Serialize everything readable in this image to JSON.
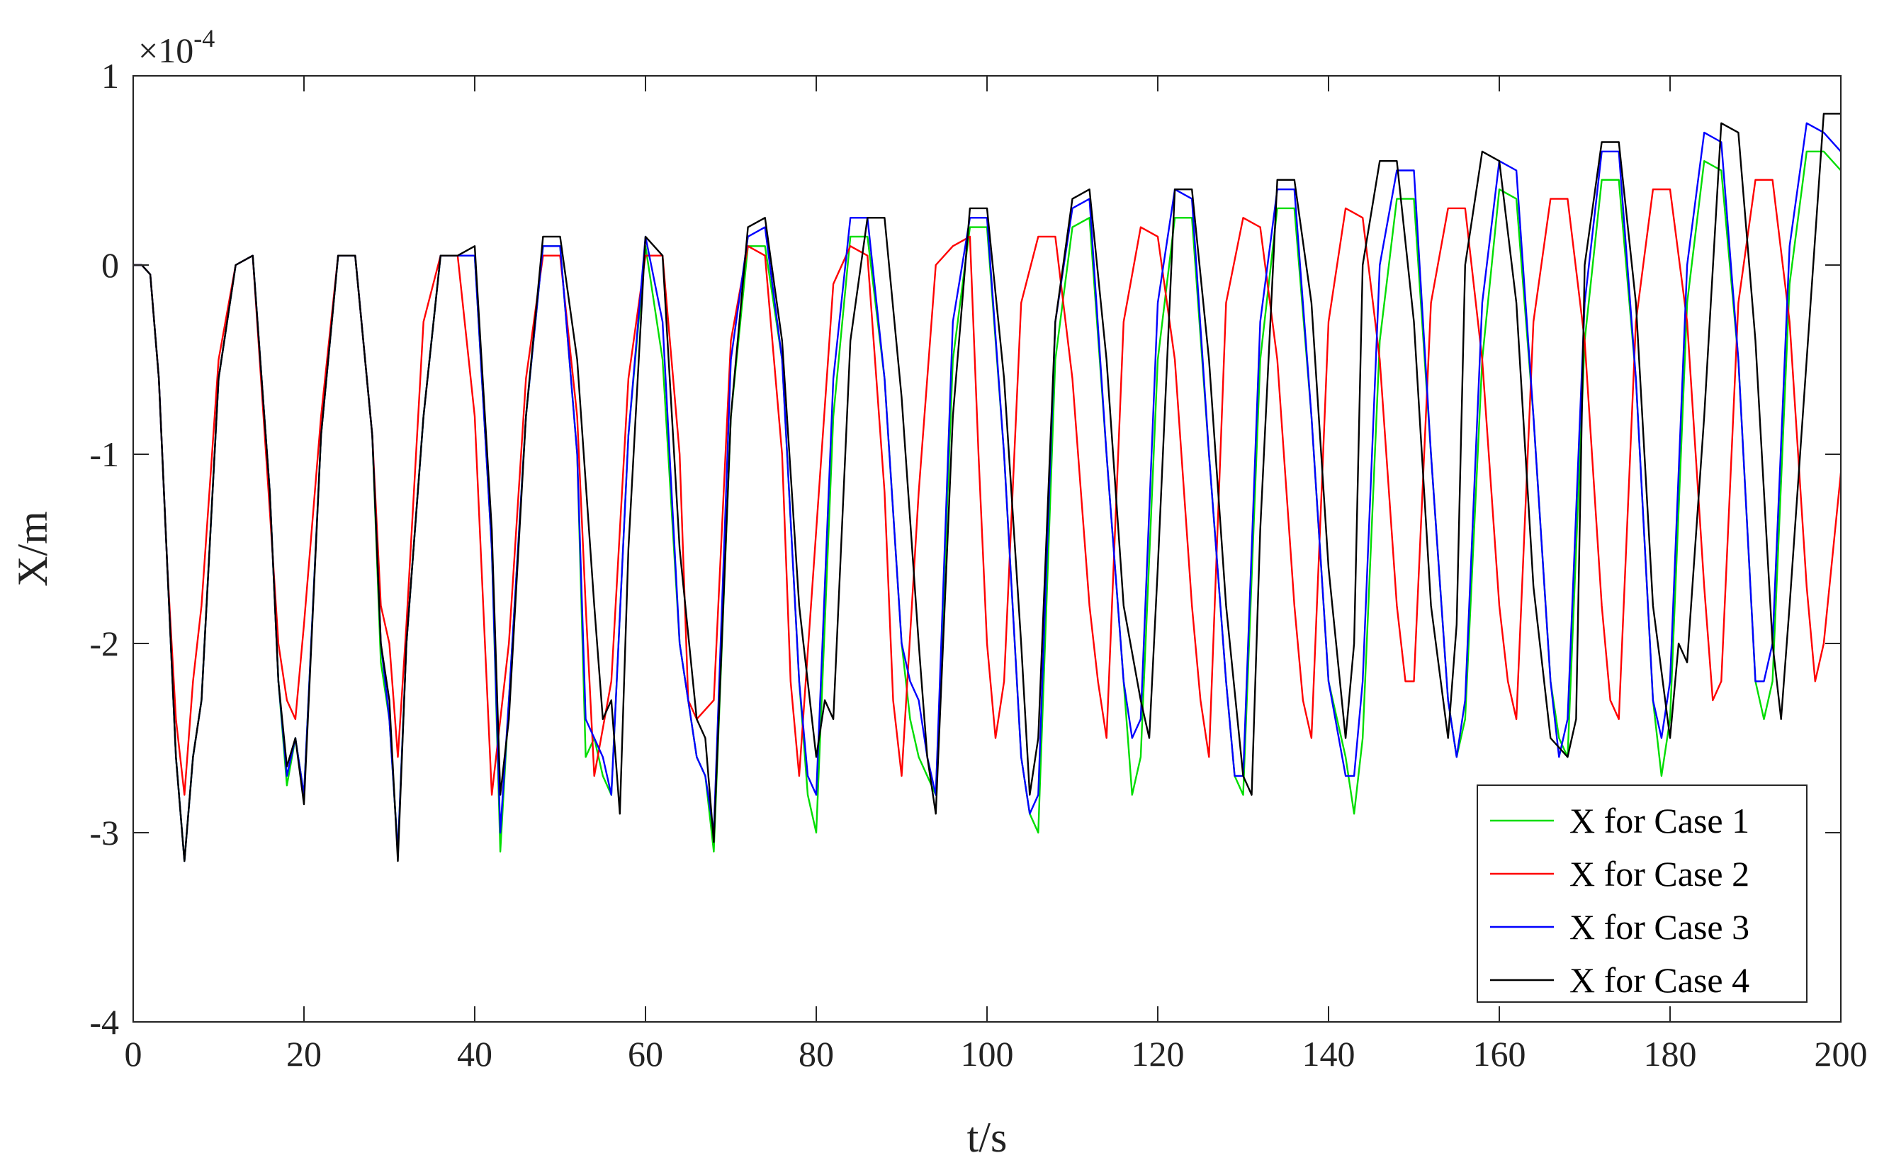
{
  "chart_data": {
    "type": "line",
    "title": "",
    "xlabel": "t/s",
    "ylabel": "X/m",
    "xlim": [
      0,
      200
    ],
    "ylim": [
      -4,
      1
    ],
    "x_ticks": [
      0,
      20,
      40,
      60,
      80,
      100,
      120,
      140,
      160,
      180,
      200
    ],
    "y_ticks": [
      -4,
      -3,
      -2,
      -1,
      0,
      1
    ],
    "y_exponent": {
      "base": "×10",
      "power": "-4"
    },
    "grid": false,
    "legend_position": "bottom-right",
    "series": [
      {
        "name": "X for Case 1",
        "color": "#00dd00",
        "x": [
          0,
          1,
          2,
          3,
          4,
          5,
          6,
          7,
          8,
          10,
          12,
          14,
          16,
          17,
          18,
          19,
          20,
          22,
          24,
          26,
          28,
          29,
          30,
          31,
          32,
          34,
          36,
          38,
          40,
          42,
          43,
          44,
          46,
          48,
          50,
          52,
          53,
          54,
          55,
          56,
          58,
          60,
          62,
          64,
          66,
          67,
          68,
          70,
          72,
          74,
          76,
          78,
          79,
          80,
          82,
          84,
          86,
          88,
          90,
          91,
          92,
          94,
          96,
          98,
          100,
          102,
          104,
          105,
          106,
          108,
          110,
          112,
          114,
          116,
          117,
          118,
          120,
          122,
          124,
          126,
          128,
          129,
          130,
          132,
          134,
          136,
          138,
          140,
          142,
          143,
          144,
          146,
          148,
          150,
          152,
          154,
          155,
          156,
          158,
          160,
          162,
          164,
          166,
          167,
          168,
          170,
          172,
          174,
          176,
          178,
          179,
          180,
          182,
          184,
          186,
          188,
          190,
          191,
          192,
          194,
          196,
          198,
          200
        ],
        "y": [
          0,
          0,
          -0.05,
          -0.6,
          -1.6,
          -2.6,
          -3.15,
          -2.6,
          -2.3,
          -0.6,
          0,
          0.05,
          -1.2,
          -2.2,
          -2.75,
          -2.5,
          -2.8,
          -0.9,
          0.05,
          0.05,
          -0.9,
          -2.1,
          -2.4,
          -3.1,
          -2.0,
          -0.8,
          0.05,
          0.05,
          0.05,
          -1.5,
          -3.1,
          -2.3,
          -0.8,
          0.1,
          0.1,
          -1.0,
          -2.6,
          -2.5,
          -2.7,
          -2.8,
          -0.9,
          0.1,
          -0.5,
          -2.0,
          -2.6,
          -2.7,
          -3.1,
          -0.8,
          0.1,
          0.1,
          -0.5,
          -2.2,
          -2.8,
          -3.0,
          -0.8,
          0.15,
          0.15,
          -0.6,
          -2.0,
          -2.4,
          -2.6,
          -2.8,
          -0.5,
          0.2,
          0.2,
          -1.0,
          -2.6,
          -2.9,
          -3.0,
          -0.5,
          0.2,
          0.25,
          -1.0,
          -2.2,
          -2.8,
          -2.6,
          -0.5,
          0.25,
          0.25,
          -1.0,
          -2.2,
          -2.7,
          -2.8,
          -0.5,
          0.3,
          0.3,
          -0.8,
          -2.2,
          -2.6,
          -2.9,
          -2.5,
          -0.4,
          0.35,
          0.35,
          -1.0,
          -2.3,
          -2.6,
          -2.4,
          -0.5,
          0.4,
          0.35,
          -0.8,
          -2.2,
          -2.5,
          -2.6,
          -0.4,
          0.45,
          0.45,
          -0.6,
          -2.3,
          -2.7,
          -2.4,
          -0.2,
          0.55,
          0.5,
          -0.5,
          -2.2,
          -2.4,
          -2.2,
          -0.1,
          0.6,
          0.6,
          0.5
        ]
      },
      {
        "name": "X for Case 2",
        "color": "#ff0000",
        "x": [
          0,
          1,
          2,
          3,
          4,
          5,
          6,
          7,
          8,
          10,
          12,
          14,
          16,
          17,
          18,
          19,
          20,
          22,
          24,
          26,
          28,
          29,
          30,
          31,
          32,
          34,
          36,
          38,
          40,
          41,
          42,
          44,
          46,
          48,
          50,
          52,
          53,
          54,
          56,
          58,
          60,
          62,
          64,
          65,
          66,
          68,
          70,
          72,
          74,
          76,
          77,
          78,
          80,
          82,
          84,
          86,
          88,
          89,
          90,
          92,
          94,
          96,
          98,
          99,
          100,
          101,
          102,
          104,
          106,
          108,
          110,
          112,
          113,
          114,
          116,
          118,
          120,
          122,
          124,
          125,
          126,
          128,
          130,
          132,
          134,
          136,
          137,
          138,
          140,
          142,
          144,
          146,
          148,
          149,
          150,
          152,
          154,
          156,
          158,
          160,
          161,
          162,
          164,
          166,
          168,
          170,
          172,
          173,
          174,
          176,
          178,
          180,
          182,
          184,
          185,
          186,
          188,
          190,
          192,
          194,
          196,
          197,
          198,
          200
        ],
        "y": [
          0,
          0,
          -0.05,
          -0.6,
          -1.6,
          -2.4,
          -2.8,
          -2.2,
          -1.8,
          -0.5,
          0,
          0.05,
          -1.3,
          -2.0,
          -2.3,
          -2.4,
          -1.9,
          -0.8,
          0.05,
          0.05,
          -0.9,
          -1.8,
          -2.0,
          -2.6,
          -1.9,
          -0.3,
          0.05,
          0.05,
          -0.8,
          -1.8,
          -2.8,
          -2.0,
          -0.6,
          0.05,
          0.05,
          -0.8,
          -1.8,
          -2.7,
          -2.2,
          -0.6,
          0.05,
          0.05,
          -1.0,
          -2.3,
          -2.4,
          -2.3,
          -0.4,
          0.1,
          0.05,
          -1.0,
          -2.2,
          -2.7,
          -1.4,
          -0.1,
          0.1,
          0.05,
          -1.2,
          -2.3,
          -2.7,
          -1.2,
          0.0,
          0.1,
          0.15,
          -1.0,
          -2.0,
          -2.5,
          -2.2,
          -0.2,
          0.15,
          0.15,
          -0.6,
          -1.8,
          -2.2,
          -2.5,
          -0.3,
          0.2,
          0.15,
          -0.5,
          -1.8,
          -2.3,
          -2.6,
          -0.2,
          0.25,
          0.2,
          -0.5,
          -1.8,
          -2.3,
          -2.5,
          -0.3,
          0.3,
          0.25,
          -0.5,
          -1.8,
          -2.2,
          -2.2,
          -0.2,
          0.3,
          0.3,
          -0.5,
          -1.8,
          -2.2,
          -2.4,
          -0.3,
          0.35,
          0.35,
          -0.4,
          -1.8,
          -2.3,
          -2.4,
          -0.3,
          0.4,
          0.4,
          -0.3,
          -1.7,
          -2.3,
          -2.2,
          -0.2,
          0.45,
          0.45,
          -0.3,
          -1.7,
          -2.2,
          -2.0,
          -1.1
        ]
      },
      {
        "name": "X for Case 3",
        "color": "#0000ff",
        "x": [
          0,
          1,
          2,
          3,
          4,
          5,
          6,
          7,
          8,
          10,
          12,
          14,
          16,
          17,
          18,
          19,
          20,
          22,
          24,
          26,
          28,
          29,
          30,
          31,
          32,
          34,
          36,
          38,
          40,
          42,
          43,
          44,
          46,
          48,
          50,
          52,
          53,
          54,
          55,
          56,
          58,
          60,
          62,
          64,
          66,
          67,
          68,
          70,
          72,
          74,
          76,
          78,
          79,
          80,
          82,
          84,
          86,
          88,
          90,
          91,
          92,
          93,
          94,
          96,
          98,
          100,
          102,
          104,
          105,
          106,
          108,
          110,
          112,
          114,
          116,
          117,
          118,
          120,
          122,
          124,
          126,
          128,
          129,
          130,
          132,
          134,
          136,
          138,
          140,
          142,
          143,
          144,
          146,
          148,
          150,
          152,
          154,
          155,
          156,
          158,
          160,
          162,
          164,
          166,
          167,
          168,
          170,
          172,
          174,
          176,
          178,
          179,
          180,
          182,
          184,
          186,
          188,
          190,
          191,
          192,
          194,
          196,
          198,
          200
        ],
        "y": [
          0,
          0,
          -0.05,
          -0.6,
          -1.6,
          -2.6,
          -3.15,
          -2.6,
          -2.3,
          -0.6,
          0,
          0.05,
          -1.2,
          -2.2,
          -2.7,
          -2.5,
          -2.8,
          -0.9,
          0.05,
          0.05,
          -0.9,
          -2.0,
          -2.4,
          -3.1,
          -2.0,
          -0.8,
          0.05,
          0.05,
          0.05,
          -1.5,
          -3.0,
          -2.3,
          -0.8,
          0.1,
          0.1,
          -1.0,
          -2.4,
          -2.5,
          -2.6,
          -2.8,
          -0.9,
          0.15,
          -0.3,
          -2.0,
          -2.6,
          -2.7,
          -3.0,
          -0.5,
          0.15,
          0.2,
          -0.5,
          -2.2,
          -2.7,
          -2.8,
          -0.6,
          0.25,
          0.25,
          -0.6,
          -2.0,
          -2.2,
          -2.3,
          -2.6,
          -2.8,
          -0.3,
          0.25,
          0.25,
          -1.0,
          -2.6,
          -2.9,
          -2.8,
          -0.3,
          0.3,
          0.35,
          -1.0,
          -2.2,
          -2.5,
          -2.4,
          -0.2,
          0.4,
          0.35,
          -1.0,
          -2.2,
          -2.7,
          -2.7,
          -0.3,
          0.4,
          0.4,
          -0.8,
          -2.2,
          -2.7,
          -2.7,
          -2.2,
          0.0,
          0.5,
          0.5,
          -1.0,
          -2.3,
          -2.6,
          -2.3,
          -0.2,
          0.55,
          0.5,
          -0.8,
          -2.2,
          -2.6,
          -2.4,
          -0.2,
          0.6,
          0.6,
          -0.6,
          -2.3,
          -2.5,
          -2.2,
          0.0,
          0.7,
          0.65,
          -0.5,
          -2.2,
          -2.2,
          -2.0,
          0.1,
          0.75,
          0.7,
          0.6
        ]
      },
      {
        "name": "X for Case 4",
        "color": "#000000",
        "x": [
          0,
          1,
          2,
          3,
          4,
          5,
          6,
          7,
          8,
          10,
          12,
          14,
          16,
          17,
          18,
          19,
          20,
          22,
          24,
          26,
          28,
          29,
          30,
          31,
          32,
          34,
          36,
          38,
          40,
          42,
          43,
          44,
          46,
          48,
          50,
          52,
          54,
          55,
          56,
          57,
          58,
          60,
          62,
          64,
          66,
          67,
          68,
          70,
          72,
          74,
          76,
          78,
          80,
          81,
          82,
          84,
          86,
          88,
          90,
          92,
          93,
          94,
          96,
          98,
          100,
          102,
          104,
          105,
          106,
          108,
          110,
          112,
          114,
          116,
          118,
          119,
          120,
          122,
          124,
          126,
          128,
          130,
          131,
          132,
          134,
          136,
          138,
          140,
          142,
          143,
          144,
          146,
          148,
          150,
          152,
          154,
          155,
          156,
          158,
          160,
          162,
          164,
          166,
          168,
          169,
          170,
          172,
          174,
          176,
          178,
          180,
          181,
          182,
          184,
          186,
          188,
          190,
          192,
          193,
          194,
          196,
          198,
          200
        ],
        "y": [
          0,
          0,
          -0.05,
          -0.6,
          -1.6,
          -2.6,
          -3.15,
          -2.6,
          -2.3,
          -0.6,
          0,
          0.05,
          -1.2,
          -2.2,
          -2.65,
          -2.5,
          -2.85,
          -0.9,
          0.05,
          0.05,
          -0.9,
          -2.0,
          -2.3,
          -3.15,
          -2.0,
          -0.8,
          0.05,
          0.05,
          0.1,
          -1.4,
          -2.8,
          -2.4,
          -0.8,
          0.15,
          0.15,
          -0.5,
          -1.8,
          -2.4,
          -2.3,
          -2.9,
          -1.5,
          0.15,
          0.05,
          -1.5,
          -2.4,
          -2.5,
          -3.05,
          -0.8,
          0.2,
          0.25,
          -0.4,
          -1.8,
          -2.6,
          -2.3,
          -2.4,
          -0.4,
          0.25,
          0.25,
          -0.7,
          -2.0,
          -2.6,
          -2.9,
          -0.8,
          0.3,
          0.3,
          -0.6,
          -2.0,
          -2.8,
          -2.5,
          -0.3,
          0.35,
          0.4,
          -0.5,
          -1.8,
          -2.3,
          -2.5,
          -1.6,
          0.4,
          0.4,
          -0.5,
          -1.8,
          -2.7,
          -2.8,
          -1.4,
          0.45,
          0.45,
          -0.2,
          -1.6,
          -2.5,
          -2.0,
          0.0,
          0.55,
          0.55,
          -0.3,
          -1.8,
          -2.5,
          -1.9,
          0.0,
          0.6,
          0.55,
          -0.2,
          -1.7,
          -2.5,
          -2.6,
          -2.4,
          0.0,
          0.65,
          0.65,
          -0.2,
          -1.8,
          -2.5,
          -2.0,
          -2.1,
          -0.8,
          0.75,
          0.7,
          -0.4,
          -2.0,
          -2.4,
          -1.8,
          -0.5,
          0.8,
          0.8
        ]
      }
    ]
  }
}
